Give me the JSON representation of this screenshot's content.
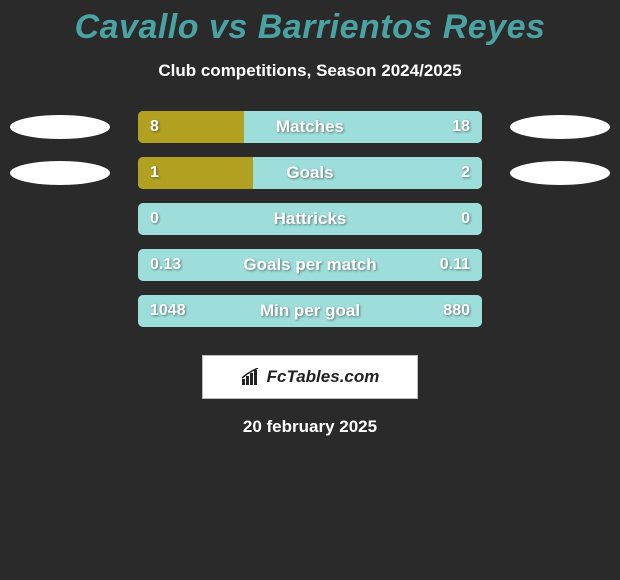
{
  "title": "Cavallo vs Barrientos Reyes",
  "title_color": "#4aa3a2",
  "subtitle": "Club competitions, Season 2024/2025",
  "subtitle_color": "#ffffff",
  "background_color": "#2a2a2a",
  "photo_bg": "#ffffff",
  "rows": [
    {
      "label": "Matches",
      "left_value": "8",
      "right_value": "18",
      "left_fill_pct": 30.8,
      "right_fill_pct": 69.2,
      "has_photos": true
    },
    {
      "label": "Goals",
      "left_value": "1",
      "right_value": "2",
      "left_fill_pct": 33.3,
      "right_fill_pct": 66.7,
      "has_photos": true
    },
    {
      "label": "Hattricks",
      "left_value": "0",
      "right_value": "0",
      "left_fill_pct": 0,
      "right_fill_pct": 0,
      "has_photos": false
    },
    {
      "label": "Goals per match",
      "left_value": "0.13",
      "right_value": "0.11",
      "left_fill_pct": 0,
      "right_fill_pct": 0,
      "has_photos": false
    },
    {
      "label": "Min per goal",
      "left_value": "1048",
      "right_value": "880",
      "left_fill_pct": 0,
      "right_fill_pct": 0,
      "has_photos": false
    }
  ],
  "bar_fill_left_color": "#b2a020",
  "bar_fill_right_color": "#9ddedb",
  "bar_bg_color": "#9ddedb",
  "bar_label_color": "#ffffff",
  "bar_value_color": "#ffffff",
  "bar_border_radius": 5,
  "logo_text": "FcTables.com",
  "logo_bg": "#ffffff",
  "logo_color": "#222222",
  "date_text": "20 february 2025",
  "date_color": "#ffffff"
}
